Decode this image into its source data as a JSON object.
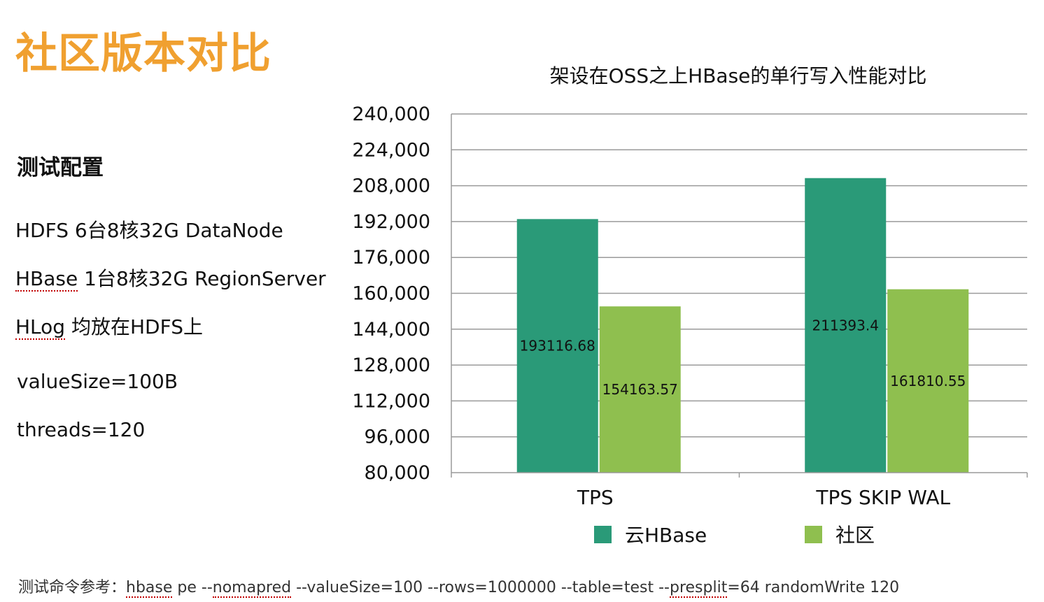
{
  "slide": {
    "title": "社区版本对比",
    "config_heading": "测试配置",
    "config_lines": {
      "hdfs": "HDFS  6台8核32G DataNode",
      "hbase_word": "HBase",
      "hbase_rest": " 1台8核32G RegionServer",
      "hlog_word": "HLog",
      "hlog_rest": " 均放在HDFS上",
      "value_size": "valueSize=100B",
      "threads": "threads=120"
    },
    "footer": {
      "prefix": "测试命令参考：",
      "w1": "hbase",
      "t1": " pe --",
      "w2": "nomapred",
      "t2": " --valueSize=100 --rows=1000000 --table=test  --",
      "w3": "presplit",
      "t3": "=64 randomWrite 120"
    }
  },
  "chart_data": {
    "type": "bar",
    "title": "架设在OSS之上HBase的单行写入性能对比",
    "categories": [
      "TPS",
      "TPS SKIP WAL"
    ],
    "series": [
      {
        "name": "云HBase",
        "color": "#2a9a78",
        "values": [
          193116.68,
          211393.4
        ],
        "labels": [
          "193116.68",
          "211393.4"
        ]
      },
      {
        "name": "社区",
        "color": "#8fbf4f",
        "values": [
          154163.57,
          161810.55
        ],
        "labels": [
          "154163.57",
          "161810.55"
        ]
      }
    ],
    "ylim": [
      80000,
      240000
    ],
    "y_ticks": [
      80000,
      96000,
      112000,
      128000,
      144000,
      160000,
      176000,
      192000,
      208000,
      224000,
      240000
    ],
    "y_tick_labels": [
      "80,000",
      "96,000",
      "112,000",
      "128,000",
      "144,000",
      "160,000",
      "176,000",
      "192,000",
      "208,000",
      "224,000",
      "240,000"
    ],
    "grid": true,
    "legend_position": "bottom",
    "xlabel": "",
    "ylabel": ""
  }
}
